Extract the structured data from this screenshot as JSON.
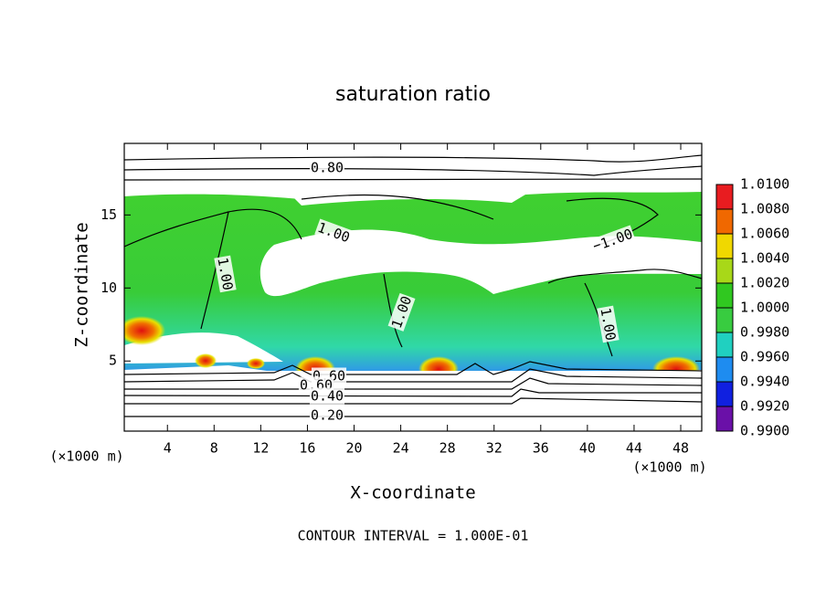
{
  "chart_data": {
    "type": "contour",
    "title": "saturation ratio",
    "x_label": "X-coordinate",
    "y_label": "Z-coordinate",
    "y_unit_label": "(×1000 m)",
    "x_unit_label": "(×1000 m)",
    "footnote": "CONTOUR INTERVAL = 1.000E-01",
    "xlim": [
      0.3,
      49.8
    ],
    "xticks": [
      4,
      8,
      12,
      16,
      20,
      24,
      28,
      32,
      36,
      40,
      44,
      48
    ],
    "ylim": [
      0.2,
      19.9
    ],
    "yticks": [
      5,
      10,
      15
    ],
    "contour_labels": [
      "0.80",
      "1.00",
      "1.00",
      "1.00",
      "1.00",
      "1.00",
      "0.60",
      "0.60",
      "0.40",
      "0.20"
    ],
    "colorbar": {
      "lim": [
        0.99,
        1.01
      ],
      "ticks": [
        {
          "value": 0.99,
          "label": "0.9900"
        },
        {
          "value": 0.992,
          "label": "0.9920"
        },
        {
          "value": 0.994,
          "label": "0.9940"
        },
        {
          "value": 0.996,
          "label": "0.9960"
        },
        {
          "value": 0.998,
          "label": "0.9980"
        },
        {
          "value": 1.0,
          "label": "1.0000"
        },
        {
          "value": 1.002,
          "label": "1.0020"
        },
        {
          "value": 1.004,
          "label": "1.0040"
        },
        {
          "value": 1.006,
          "label": "1.0060"
        },
        {
          "value": 1.008,
          "label": "1.0080"
        },
        {
          "value": 1.01,
          "label": "1.0100"
        }
      ],
      "colors": [
        "#6a10a8",
        "#1020e0",
        "#1e8cf0",
        "#20d0c0",
        "#38cc40",
        "#30c820",
        "#a8d818",
        "#f0d800",
        "#f06800",
        "#e81c20"
      ]
    }
  }
}
